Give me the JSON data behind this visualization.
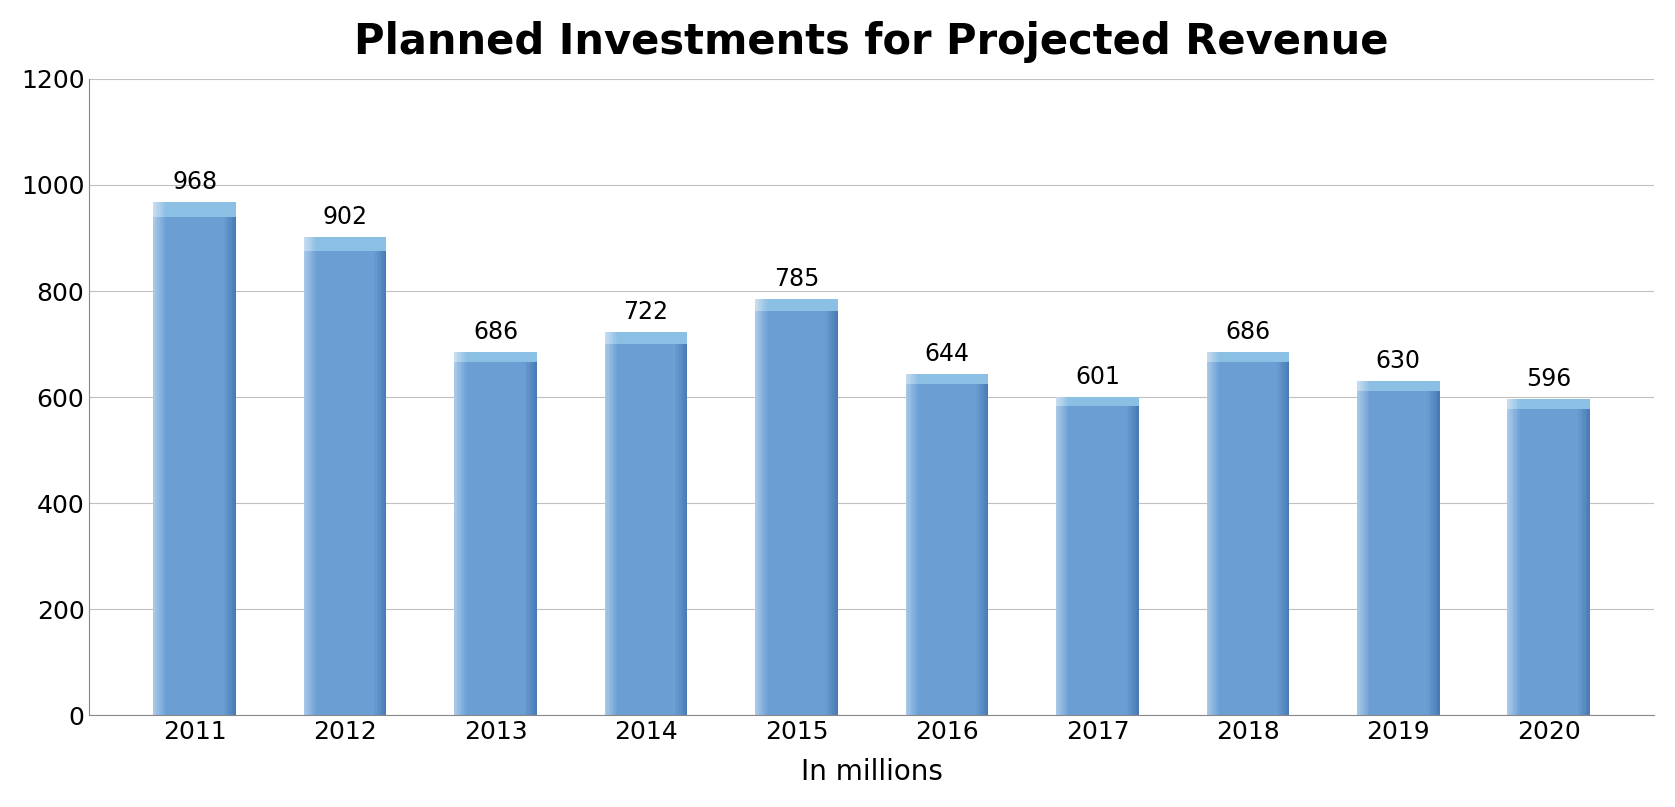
{
  "title": "Planned Investments for Projected Revenue",
  "xlabel": "In millions",
  "ylabel": "",
  "categories": [
    "2011",
    "2012",
    "2013",
    "2014",
    "2015",
    "2016",
    "2017",
    "2018",
    "2019",
    "2020"
  ],
  "values": [
    968,
    902,
    686,
    722,
    785,
    644,
    601,
    686,
    630,
    596
  ],
  "bar_color_main": "#6B9FD4",
  "bar_color_light": "#A8C8E8",
  "bar_color_dark": "#4A7AB5",
  "ylim": [
    0,
    1200
  ],
  "yticks": [
    0,
    200,
    400,
    600,
    800,
    1000,
    1200
  ],
  "title_fontsize": 30,
  "xlabel_fontsize": 20,
  "tick_fontsize": 18,
  "label_fontsize": 17,
  "background_color": "#FFFFFF",
  "grid_color": "#C0C0C0",
  "bar_width": 0.55
}
